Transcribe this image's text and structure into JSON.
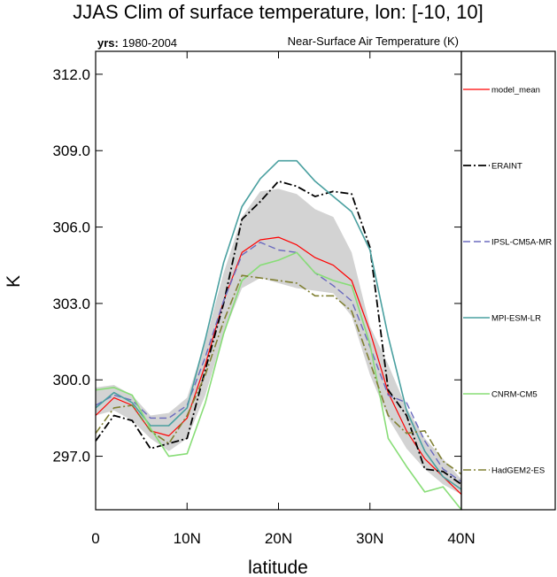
{
  "chart_data": {
    "type": "line",
    "title": "JJAS Clim of surface temperature, lon: [-10, 10]",
    "subtitle_left_bold": "yrs:",
    "subtitle_left_value": "1980-2004",
    "subtitle_right": "Near-Surface Air Temperature (K)",
    "xlabel": "latitude",
    "ylabel": "K",
    "xlim": [
      0,
      40
    ],
    "ylim": [
      294.9,
      312.9
    ],
    "xticks": [
      0,
      10,
      20,
      30,
      40
    ],
    "xtick_labels": [
      "0",
      "10N",
      "20N",
      "30N",
      "40N"
    ],
    "yticks": [
      297,
      300,
      303,
      306,
      309,
      312
    ],
    "ytick_labels": [
      "297.0",
      "300.0",
      "303.0",
      "306.0",
      "309.0",
      "312.0"
    ],
    "grid": false,
    "legend_position": "right",
    "spread_band": {
      "color": "#d3d3d3",
      "x": [
        0,
        2,
        4,
        6,
        8,
        10,
        12,
        14,
        16,
        18,
        20,
        22,
        24,
        26,
        28,
        30,
        32,
        34,
        36,
        38,
        40
      ],
      "upper": [
        299.7,
        299.8,
        299.4,
        298.6,
        298.7,
        299.3,
        301.5,
        304.2,
        306.4,
        307.4,
        307.5,
        307.3,
        306.7,
        306.4,
        305.0,
        302.1,
        300.6,
        298.9,
        297.7,
        296.9,
        296.1
      ],
      "lower": [
        298.6,
        298.8,
        298.4,
        297.7,
        297.2,
        297.7,
        299.4,
        301.8,
        303.6,
        304.0,
        303.8,
        303.6,
        303.5,
        303.4,
        302.5,
        300.2,
        298.5,
        297.3,
        296.5,
        295.9,
        295.5
      ]
    },
    "x": [
      0,
      2,
      4,
      6,
      8,
      10,
      12,
      14,
      16,
      18,
      20,
      22,
      24,
      26,
      28,
      30,
      32,
      34,
      36,
      38,
      40
    ],
    "series": [
      {
        "name": "model_mean",
        "color": "#ff0000",
        "dash": "",
        "width": 1.2,
        "values": [
          298.6,
          299.3,
          299.0,
          298.0,
          297.8,
          298.5,
          300.6,
          303.1,
          305.0,
          305.5,
          305.6,
          305.3,
          304.8,
          304.5,
          303.9,
          301.9,
          299.5,
          298.0,
          296.9,
          296.2,
          295.5
        ]
      },
      {
        "name": "ERAINT",
        "color": "#000000",
        "dash": "9 3 2 3",
        "width": 1.8,
        "values": [
          297.6,
          298.6,
          298.4,
          297.3,
          297.5,
          297.7,
          300.4,
          303.0,
          306.3,
          307.0,
          307.8,
          307.6,
          307.2,
          307.4,
          307.3,
          305.2,
          299.6,
          298.6,
          296.5,
          296.4,
          295.9
        ]
      },
      {
        "name": "IPSL-CM5A-MR",
        "color": "#6b6bbf",
        "dash": "8 4",
        "width": 1.4,
        "values": [
          299.0,
          299.4,
          299.2,
          298.5,
          298.5,
          299.0,
          300.9,
          303.1,
          304.9,
          305.4,
          305.1,
          305.0,
          304.2,
          303.7,
          303.1,
          301.3,
          299.4,
          299.1,
          297.6,
          296.5,
          296.0
        ]
      },
      {
        "name": "MPI-ESM-LR",
        "color": "#4aa0a0",
        "dash": "",
        "width": 1.6,
        "values": [
          298.9,
          299.5,
          299.1,
          298.2,
          298.2,
          298.9,
          301.6,
          304.6,
          306.8,
          307.9,
          308.6,
          308.6,
          307.8,
          307.2,
          306.6,
          305.1,
          301.7,
          298.8,
          297.2,
          296.2,
          295.7
        ]
      },
      {
        "name": "CNRM-CM5",
        "color": "#88dd77",
        "dash": "",
        "width": 1.6,
        "values": [
          299.6,
          299.7,
          299.4,
          298.1,
          297.0,
          297.1,
          299.1,
          301.8,
          303.9,
          304.5,
          304.7,
          305.0,
          304.2,
          303.9,
          303.7,
          301.4,
          297.7,
          296.6,
          295.6,
          295.8,
          294.9
        ]
      },
      {
        "name": "HadGEM2-ES",
        "color": "#808033",
        "dash": "9 3 2 3",
        "width": 1.6,
        "values": [
          297.9,
          298.9,
          299.0,
          298.0,
          297.5,
          298.6,
          300.2,
          302.3,
          304.1,
          304.0,
          303.9,
          303.8,
          303.3,
          303.3,
          302.7,
          300.7,
          298.6,
          297.9,
          298.0,
          296.8,
          296.3
        ]
      }
    ]
  }
}
